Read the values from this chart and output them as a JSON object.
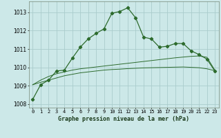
{
  "title": "Graphe pression niveau de la mer (hPa)",
  "background_color": "#cce8e8",
  "grid_color": "#aacccc",
  "line_color": "#2d6b2d",
  "x_values": [
    0,
    1,
    2,
    3,
    4,
    5,
    6,
    7,
    8,
    9,
    10,
    11,
    12,
    13,
    14,
    15,
    16,
    17,
    18,
    19,
    20,
    21,
    22,
    23
  ],
  "x_labels": [
    "0",
    "1",
    "2",
    "3",
    "4",
    "5",
    "6",
    "7",
    "8",
    "9",
    "10",
    "11",
    "12",
    "13",
    "14",
    "15",
    "16",
    "17",
    "18",
    "19",
    "20",
    "21",
    "22",
    "23"
  ],
  "ylim": [
    1007.8,
    1013.6
  ],
  "yticks": [
    1008,
    1009,
    1010,
    1011,
    1012,
    1013
  ],
  "series1": [
    1008.25,
    1009.05,
    1009.3,
    1009.8,
    1009.85,
    1010.5,
    1011.1,
    1011.55,
    1011.85,
    1012.1,
    1012.95,
    1013.05,
    1013.25,
    1012.7,
    1011.65,
    1011.55,
    1011.1,
    1011.15,
    1011.3,
    1011.3,
    1010.9,
    1010.7,
    1010.45,
    1009.8
  ],
  "series2": [
    1009.05,
    1009.3,
    1009.5,
    1009.65,
    1009.75,
    1009.85,
    1009.92,
    1009.97,
    1010.02,
    1010.07,
    1010.12,
    1010.17,
    1010.22,
    1010.27,
    1010.32,
    1010.37,
    1010.42,
    1010.47,
    1010.52,
    1010.56,
    1010.6,
    1010.62,
    1010.55,
    1009.85
  ],
  "series3": [
    1009.05,
    1009.18,
    1009.3,
    1009.42,
    1009.54,
    1009.62,
    1009.7,
    1009.75,
    1009.8,
    1009.85,
    1009.88,
    1009.9,
    1009.93,
    1009.95,
    1009.97,
    1009.98,
    1009.99,
    1010.0,
    1010.01,
    1010.02,
    1010.0,
    1009.98,
    1009.92,
    1009.82
  ]
}
